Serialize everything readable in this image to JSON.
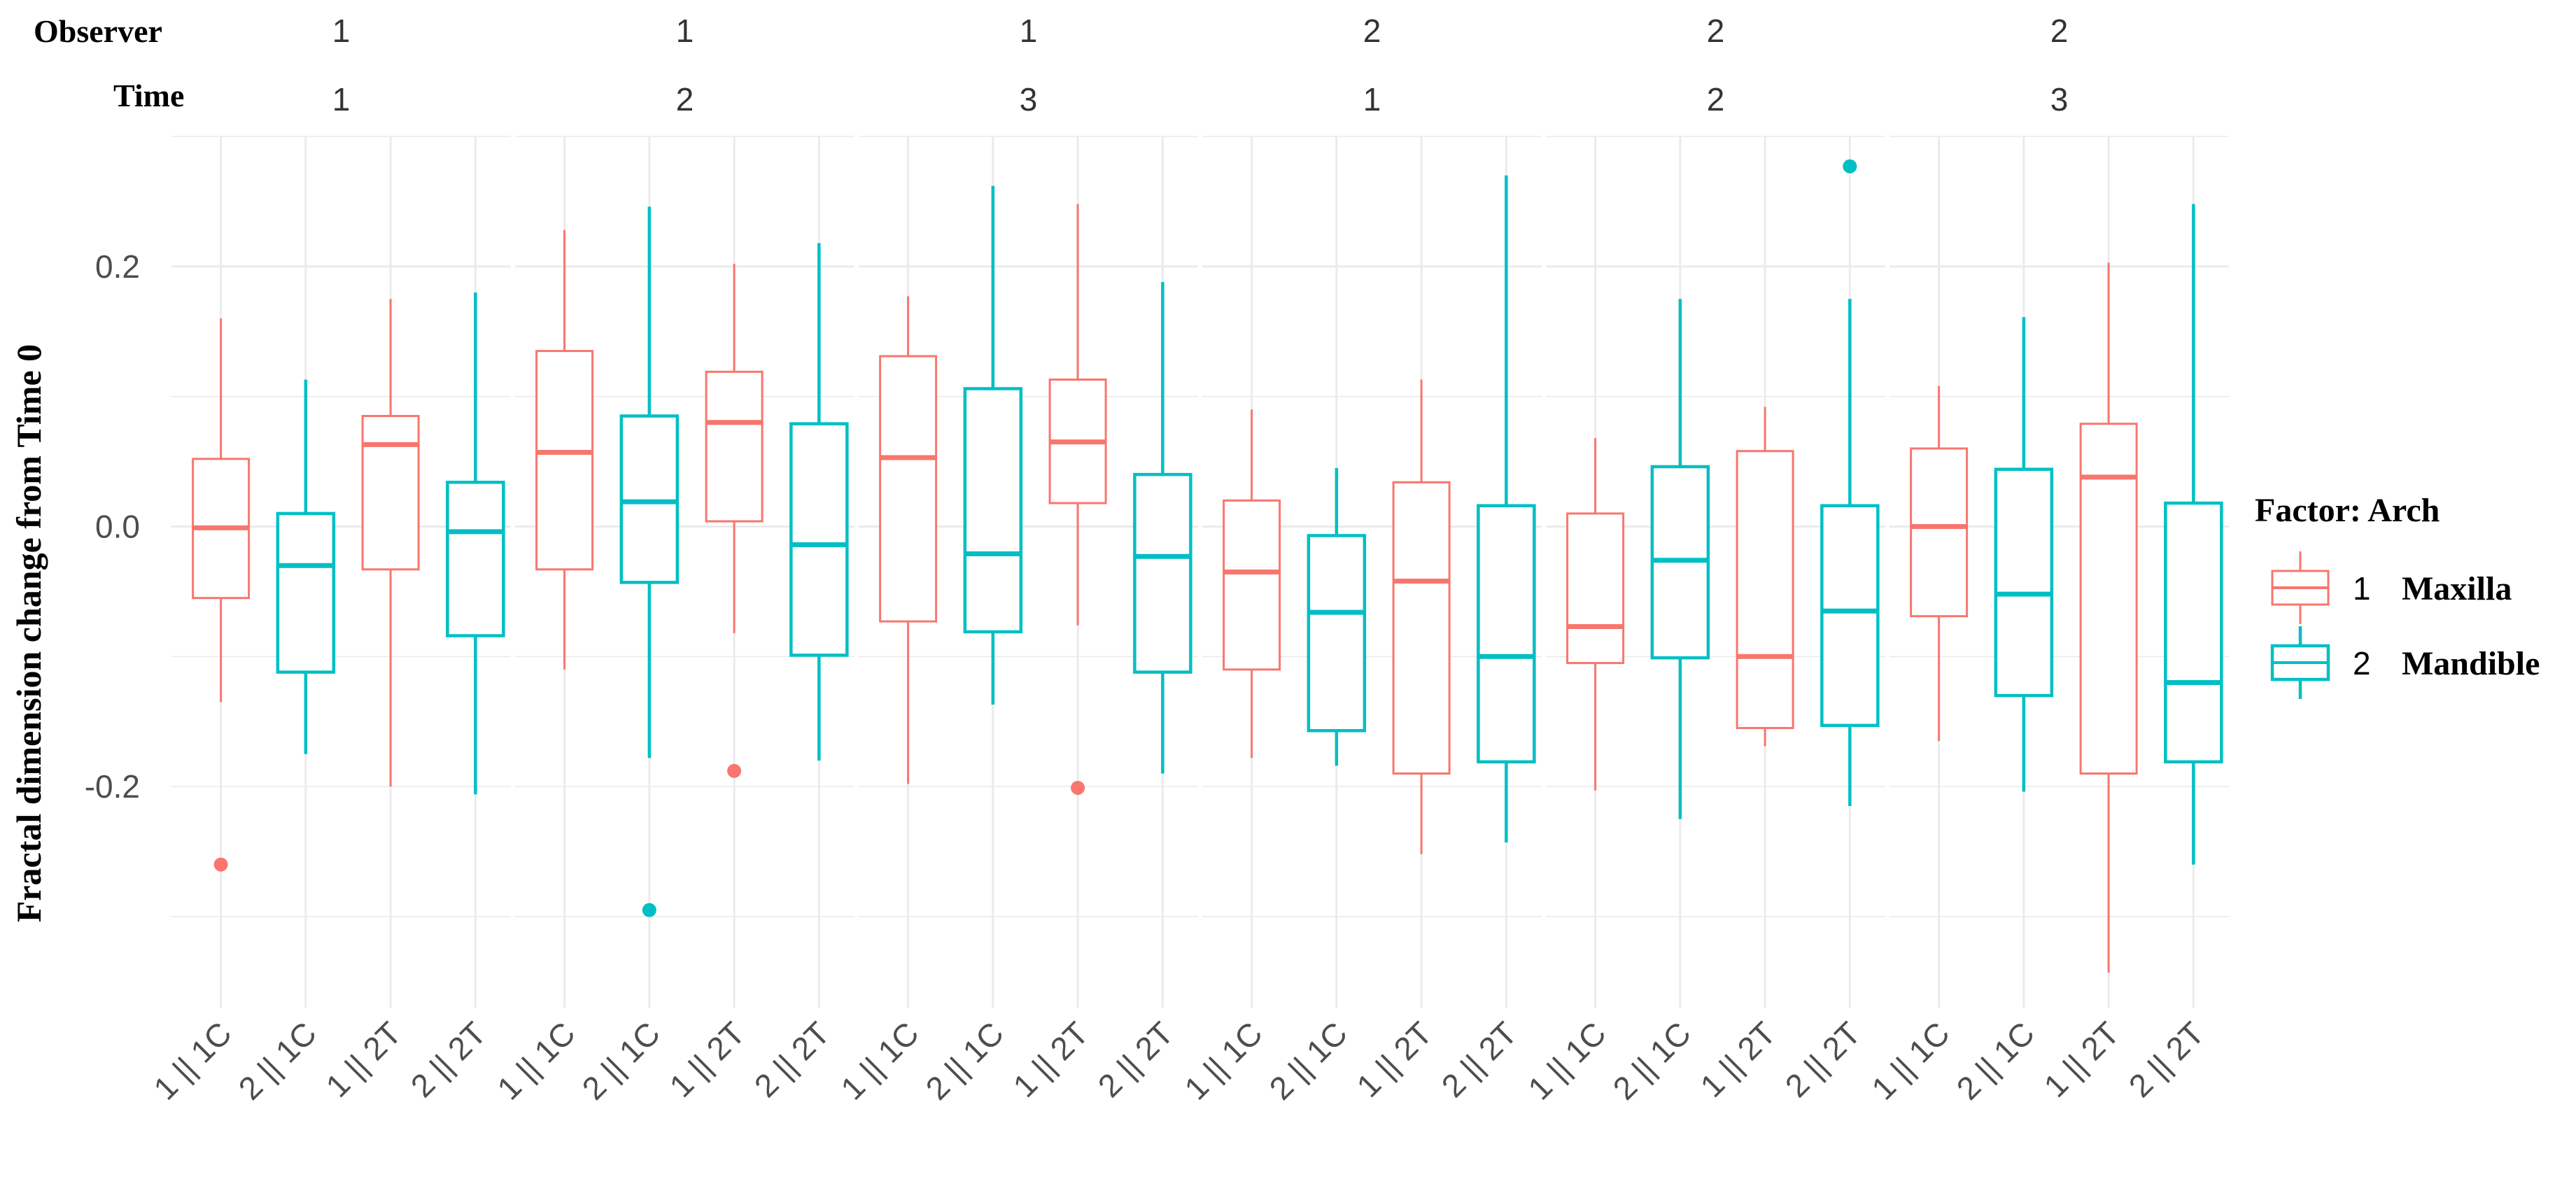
{
  "chart_data": {
    "type": "boxplot",
    "title": "",
    "ylabel": "Fractal  dimension change from Time 0",
    "xlabel": "",
    "ylim": [
      -0.37,
      0.3
    ],
    "yticks": [
      -0.2,
      0.0,
      0.2
    ],
    "ytick_labels": [
      "-0.2",
      "0.0",
      "0.2"
    ],
    "grid": true,
    "facet_headers": {
      "observer": "Observer",
      "time": "Time"
    },
    "categories": [
      "1 || 1C",
      "2 || 1C",
      "1 || 2T",
      "2 || 2T"
    ],
    "legend": {
      "title": "Factor: Arch",
      "position": "right",
      "entries": [
        {
          "num": "1",
          "label": "Maxilla",
          "color": "#F8766D"
        },
        {
          "num": "2",
          "label": "Mandible",
          "color": "#00BFC4"
        }
      ]
    },
    "panels": [
      {
        "observer": "1",
        "time": "1",
        "boxes": [
          {
            "arch": 1,
            "lower": -0.135,
            "q1": -0.055,
            "median": -0.001,
            "q3": 0.052,
            "upper": 0.16,
            "outliers": [
              -0.26
            ]
          },
          {
            "arch": 2,
            "lower": -0.175,
            "q1": -0.112,
            "median": -0.03,
            "q3": 0.01,
            "upper": 0.113,
            "outliers": []
          },
          {
            "arch": 1,
            "lower": -0.2,
            "q1": -0.033,
            "median": 0.063,
            "q3": 0.085,
            "upper": 0.175,
            "outliers": []
          },
          {
            "arch": 2,
            "lower": -0.206,
            "q1": -0.084,
            "median": -0.004,
            "q3": 0.034,
            "upper": 0.18,
            "outliers": []
          }
        ]
      },
      {
        "observer": "1",
        "time": "2",
        "boxes": [
          {
            "arch": 1,
            "lower": -0.11,
            "q1": -0.033,
            "median": 0.057,
            "q3": 0.135,
            "upper": 0.228,
            "outliers": []
          },
          {
            "arch": 2,
            "lower": -0.178,
            "q1": -0.043,
            "median": 0.019,
            "q3": 0.085,
            "upper": 0.246,
            "outliers": [
              -0.295
            ]
          },
          {
            "arch": 1,
            "lower": -0.082,
            "q1": 0.004,
            "median": 0.08,
            "q3": 0.119,
            "upper": 0.202,
            "outliers": [
              -0.188
            ]
          },
          {
            "arch": 2,
            "lower": -0.18,
            "q1": -0.099,
            "median": -0.014,
            "q3": 0.079,
            "upper": 0.218,
            "outliers": []
          }
        ]
      },
      {
        "observer": "1",
        "time": "3",
        "boxes": [
          {
            "arch": 1,
            "lower": -0.198,
            "q1": -0.073,
            "median": 0.053,
            "q3": 0.131,
            "upper": 0.177,
            "outliers": []
          },
          {
            "arch": 2,
            "lower": -0.137,
            "q1": -0.081,
            "median": -0.021,
            "q3": 0.106,
            "upper": 0.262,
            "outliers": []
          },
          {
            "arch": 1,
            "lower": -0.076,
            "q1": 0.018,
            "median": 0.065,
            "q3": 0.113,
            "upper": 0.248,
            "outliers": [
              -0.201
            ]
          },
          {
            "arch": 2,
            "lower": -0.19,
            "q1": -0.112,
            "median": -0.023,
            "q3": 0.04,
            "upper": 0.188,
            "outliers": []
          }
        ]
      },
      {
        "observer": "2",
        "time": "1",
        "boxes": [
          {
            "arch": 1,
            "lower": -0.178,
            "q1": -0.11,
            "median": -0.035,
            "q3": 0.02,
            "upper": 0.09,
            "outliers": []
          },
          {
            "arch": 2,
            "lower": -0.184,
            "q1": -0.157,
            "median": -0.066,
            "q3": -0.007,
            "upper": 0.045,
            "outliers": []
          },
          {
            "arch": 1,
            "lower": -0.252,
            "q1": -0.19,
            "median": -0.042,
            "q3": 0.034,
            "upper": 0.113,
            "outliers": []
          },
          {
            "arch": 2,
            "lower": -0.243,
            "q1": -0.181,
            "median": -0.1,
            "q3": 0.016,
            "upper": 0.27,
            "outliers": []
          }
        ]
      },
      {
        "observer": "2",
        "time": "2",
        "boxes": [
          {
            "arch": 1,
            "lower": -0.203,
            "q1": -0.105,
            "median": -0.077,
            "q3": 0.01,
            "upper": 0.068,
            "outliers": []
          },
          {
            "arch": 2,
            "lower": -0.225,
            "q1": -0.101,
            "median": -0.026,
            "q3": 0.046,
            "upper": 0.175,
            "outliers": []
          },
          {
            "arch": 1,
            "lower": -0.169,
            "q1": -0.155,
            "median": -0.1,
            "q3": 0.058,
            "upper": 0.092,
            "outliers": []
          },
          {
            "arch": 2,
            "lower": -0.215,
            "q1": -0.153,
            "median": -0.065,
            "q3": 0.016,
            "upper": 0.175,
            "outliers": [
              0.277
            ]
          }
        ]
      },
      {
        "observer": "2",
        "time": "3",
        "boxes": [
          {
            "arch": 1,
            "lower": -0.165,
            "q1": -0.069,
            "median": 0.0,
            "q3": 0.06,
            "upper": 0.108,
            "outliers": []
          },
          {
            "arch": 2,
            "lower": -0.204,
            "q1": -0.13,
            "median": -0.052,
            "q3": 0.044,
            "upper": 0.161,
            "outliers": []
          },
          {
            "arch": 1,
            "lower": -0.343,
            "q1": -0.19,
            "median": 0.038,
            "q3": 0.079,
            "upper": 0.203,
            "outliers": []
          },
          {
            "arch": 2,
            "lower": -0.26,
            "q1": -0.181,
            "median": -0.12,
            "q3": 0.018,
            "upper": 0.248,
            "outliers": []
          }
        ]
      }
    ]
  }
}
